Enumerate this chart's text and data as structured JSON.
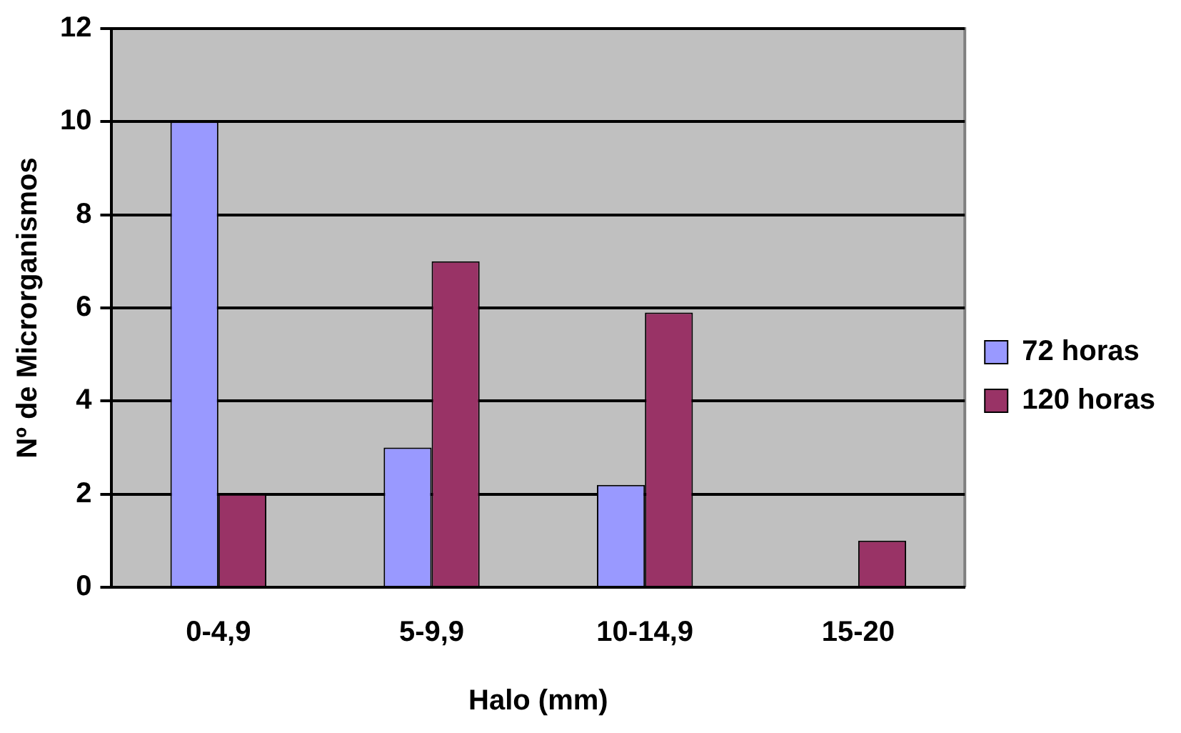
{
  "chart_data": {
    "type": "bar",
    "xlabel": "Halo (mm)",
    "ylabel": "Nº de Microrganismos",
    "categories": [
      "0-4,9",
      "5-9,9",
      "10-14,9",
      "15-20"
    ],
    "series": [
      {
        "name": "72 horas",
        "color": "#9999ff",
        "values": [
          10,
          3,
          2.2,
          0
        ]
      },
      {
        "name": "120 horas",
        "color": "#993366",
        "values": [
          2,
          7,
          5.9,
          1
        ]
      }
    ],
    "ylim": [
      0,
      12
    ],
    "yticks": [
      0,
      2,
      4,
      6,
      8,
      10,
      12
    ],
    "grid": "y",
    "legend": "right"
  }
}
